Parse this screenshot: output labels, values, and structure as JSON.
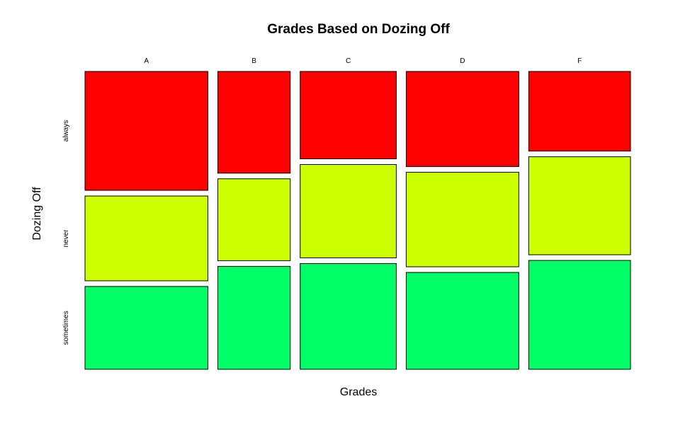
{
  "chart_data": {
    "type": "mosaic",
    "title": "Grades Based on Dozing Off",
    "xlabel": "Grades",
    "ylabel": "Dozing Off",
    "categories": [
      "A",
      "B",
      "C",
      "D",
      "F"
    ],
    "column_widths": [
      0.239,
      0.141,
      0.187,
      0.219,
      0.198
    ],
    "series": [
      {
        "name": "always",
        "color": "#ff0000",
        "values": [
          0.415,
          0.355,
          0.305,
          0.332,
          0.278
        ]
      },
      {
        "name": "never",
        "color": "#ccff00",
        "values": [
          0.296,
          0.286,
          0.326,
          0.33,
          0.342
        ]
      },
      {
        "name": "sometimes",
        "color": "#00ff66",
        "values": [
          0.289,
          0.359,
          0.369,
          0.338,
          0.38
        ]
      }
    ],
    "grid": false,
    "legend": "none"
  }
}
